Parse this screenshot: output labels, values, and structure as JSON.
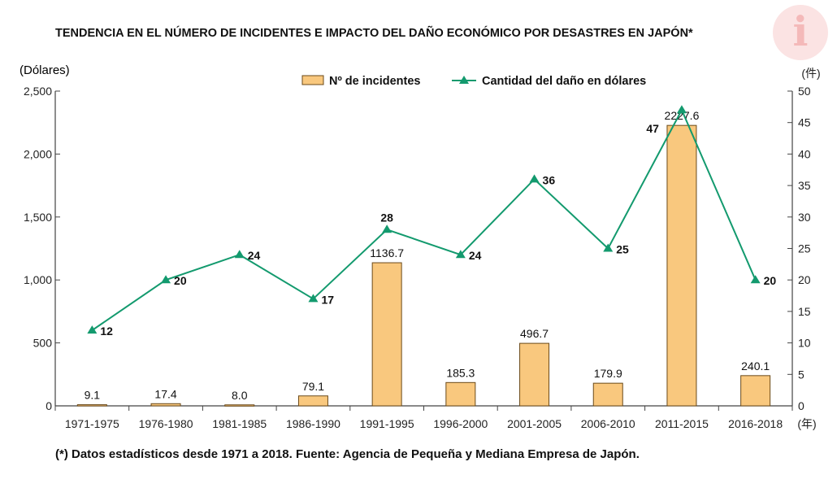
{
  "title": "TENDENCIA EN EL NÚMERO DE INCIDENTES E IMPACTO DEL DAÑO ECONÓMICO POR DESASTRES EN JAPÓN*",
  "footnote": "(*) Datos estadísticos desde 1971 a 2018. Fuente: Agencia de Pequeña y Mediana Empresa de Japón.",
  "logo_letter": "i",
  "colors": {
    "bar_fill": "#f9c87e",
    "bar_stroke": "#6b4a1a",
    "line": "#139a6e",
    "axis": "#444444"
  },
  "chart_data": {
    "type": "bar",
    "categories": [
      "1971-1975",
      "1976-1980",
      "1981-1985",
      "1986-1990",
      "1991-1995",
      "1996-2000",
      "2001-2005",
      "2006-2010",
      "2011-2015",
      "2016-2018"
    ],
    "series": [
      {
        "name": "Nº de incidentes",
        "type": "bar",
        "axis": "left",
        "values": [
          9.1,
          17.4,
          8.0,
          79.1,
          1136.7,
          185.3,
          496.7,
          179.9,
          2227.6,
          240.1
        ],
        "labels": [
          "9.1",
          "17.4",
          "8.0",
          "79.1",
          "1136.7",
          "185.3",
          "496.7",
          "179.9",
          "2227.6",
          "240.1"
        ]
      },
      {
        "name": "Cantidad del daño en dólares",
        "type": "line",
        "axis": "right",
        "values": [
          12,
          20,
          24,
          17,
          28,
          24,
          36,
          25,
          47,
          20
        ],
        "labels": [
          "12",
          "20",
          "24",
          "17",
          "28",
          "24",
          "36",
          "25",
          "47",
          "20"
        ]
      }
    ],
    "y_left": {
      "label": "(Dólares)",
      "range": [
        0,
        2500
      ],
      "ticks": [
        0,
        500,
        1000,
        1500,
        2000,
        2500
      ],
      "tick_labels": [
        "0",
        "500",
        "1,000",
        "1,500",
        "2,000",
        "2,500"
      ]
    },
    "y_right": {
      "label": "(件)",
      "range": [
        0,
        50
      ],
      "ticks": [
        0,
        5,
        10,
        15,
        20,
        25,
        30,
        35,
        40,
        45,
        50
      ],
      "tick_labels": [
        "0",
        "5",
        "10",
        "15",
        "20",
        "25",
        "30",
        "35",
        "40",
        "45",
        "50"
      ]
    },
    "x_unit_label": "(年)",
    "legend_position": "top-center",
    "grid": false
  }
}
